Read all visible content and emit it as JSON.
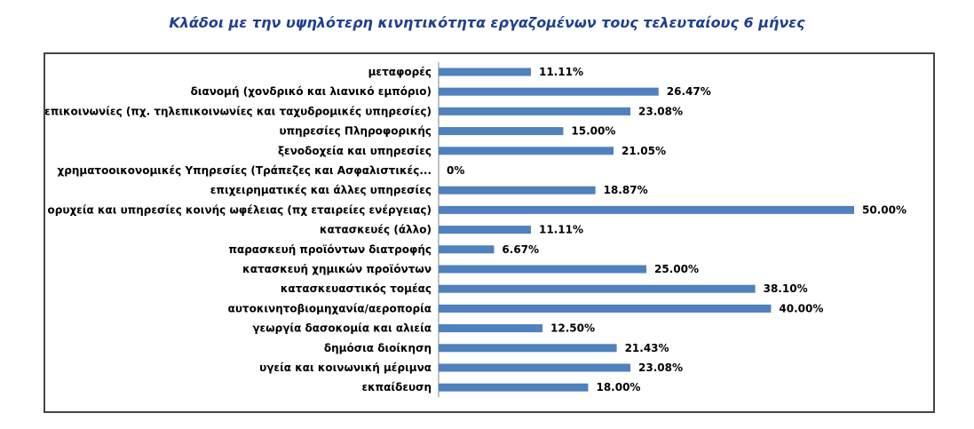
{
  "chart_data": {
    "type": "bar",
    "orientation": "horizontal",
    "title": "Κλάδοι με την υψηλότερη κινητικότητα εργαζομένων τους τελευταίους 6 μήνες",
    "categories": [
      "μεταφορές",
      "διανομή (χονδρικό και λιανικό εμπόριο)",
      "επικοινωνίες (πχ. τηλεπικοινωνίες και ταχυδρομικές υπηρεσίες)",
      "υπηρεσίες Πληροφορικής",
      "ξενοδοχεία και υπηρεσίες",
      "χρηματοοικονομικές Υπηρεσίες (Τράπεζες και Ασφαλιστικές...",
      "επιχειρηματικές και άλλες υπηρεσίες",
      "ορυχεία και υπηρεσίες κοινής ωφέλειας (πχ εταιρείες ενέργειας)",
      "κατασκευές (άλλο)",
      "παρασκευή προϊόντων διατροφής",
      "κατασκευή χημικών προϊόντων",
      "κατασκευαστικός τομέας",
      "αυτοκινητοβιομηχανία/αεροπορία",
      "γεωργία δασοκομία και αλιεία",
      "δημόσια διοίκηση",
      "υγεία και κοινωνική μέριμνα",
      "εκπαίδευση"
    ],
    "values": [
      11.11,
      26.47,
      23.08,
      15.0,
      21.05,
      0,
      18.87,
      50.0,
      11.11,
      6.67,
      25.0,
      38.1,
      40.0,
      12.5,
      21.43,
      23.08,
      18.0
    ],
    "value_labels": [
      "11.11%",
      "26.47%",
      "23.08%",
      "15.00%",
      "21.05%",
      "0%",
      "18.87%",
      "50.00%",
      "11.11%",
      "6.67%",
      "25.00%",
      "38.10%",
      "40.00%",
      "12.50%",
      "21.43%",
      "23.08%",
      "18.00%"
    ],
    "xlim": [
      0,
      50
    ],
    "grid": false,
    "legend": "none",
    "bar_color": "#4f81bd"
  }
}
